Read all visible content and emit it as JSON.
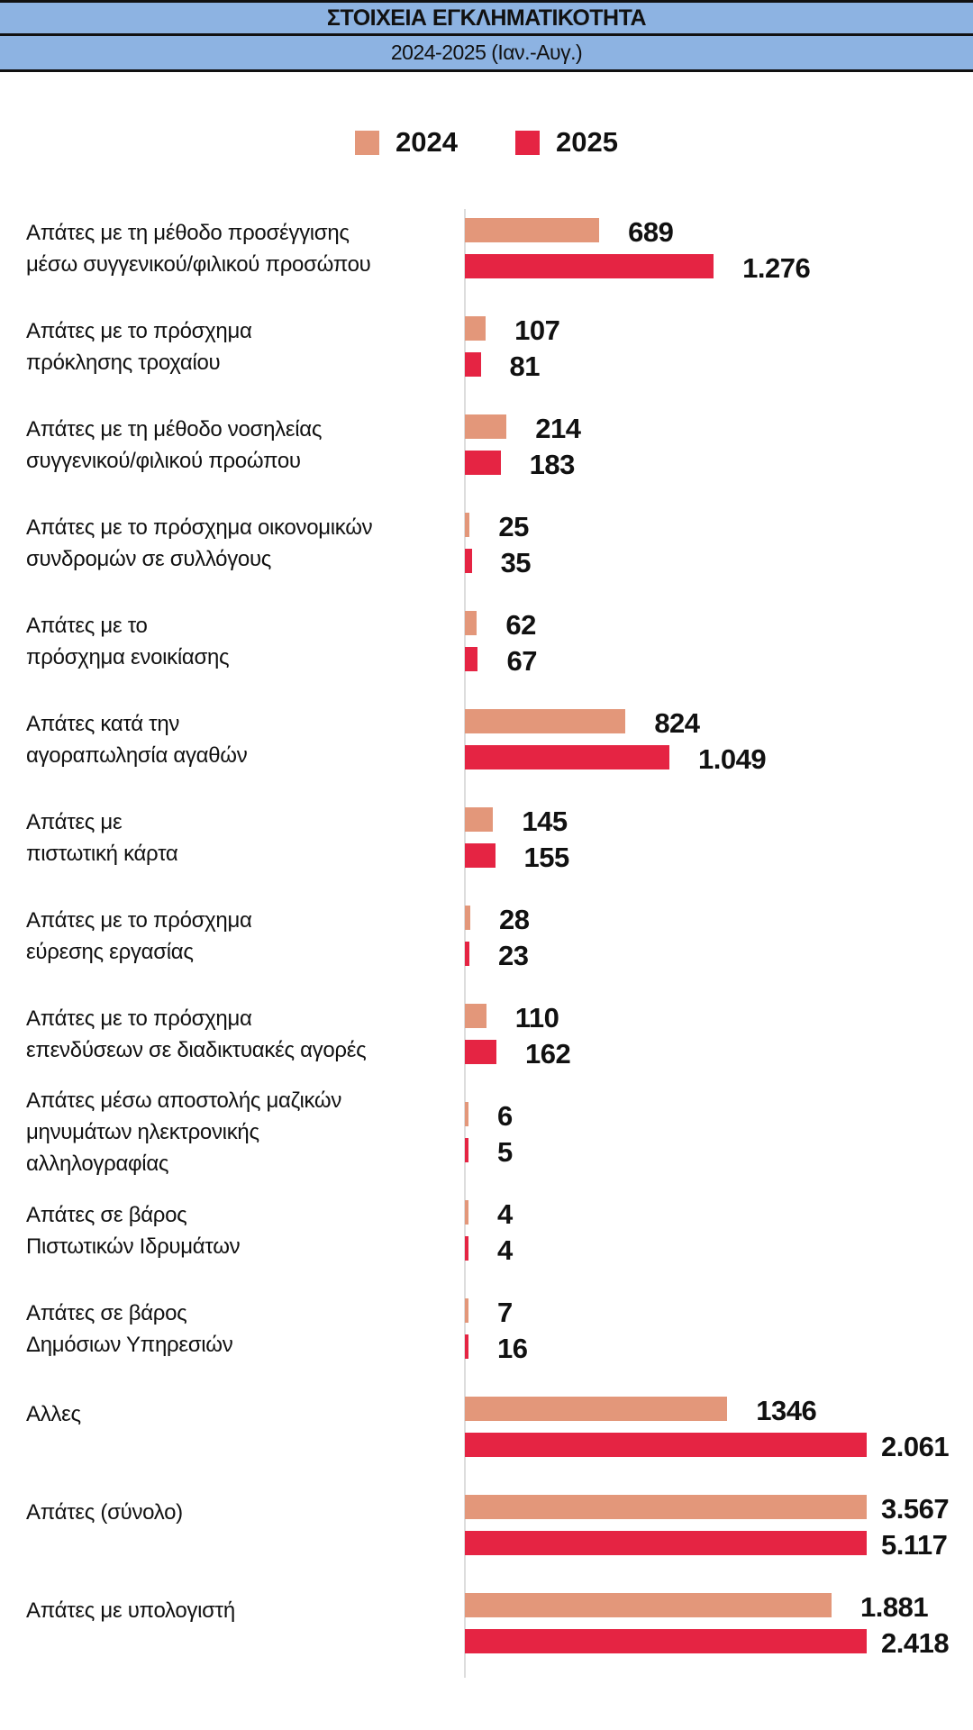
{
  "header": {
    "title": "ΣΤΟΙΧΕΙΑ ΕΓΚΛΗΜΑΤΙΚΟΤΗΤΑ",
    "subtitle": "2024-2025 (Ιαν.-Αυγ.)"
  },
  "colors": {
    "2024": "#E3977A",
    "2025": "#E52443",
    "header_band": "#8DB3E2"
  },
  "chart_data": {
    "type": "bar",
    "orientation": "horizontal",
    "title": "ΣΤΟΙΧΕΙΑ ΕΓΚΛΗΜΑΤΙΚΟΤΗΤΑ",
    "subtitle": "2024-2025 (Ιαν.-Αυγ.)",
    "legend_position": "top",
    "grid": false,
    "categories": [
      [
        "Απάτες με τη μέθοδο προσέγγισης",
        "μέσω συγγενικού/φιλικού προσώπου"
      ],
      [
        "Απάτες με το πρόσχημα",
        "πρόκλησης τροχαίου"
      ],
      [
        "Απάτες με τη μέθοδο νοσηλείας",
        "συγγενικού/φιλικού προώπου"
      ],
      [
        "Απάτες με το πρόσχημα οικονομικών",
        "συνδρομών σε συλλόγους"
      ],
      [
        "Απάτες με το",
        "πρόσχημα ενοικίασης"
      ],
      [
        "Απάτες κατά την",
        "αγοραπωλησία αγαθών"
      ],
      [
        "Απάτες με",
        "πιστωτική κάρτα"
      ],
      [
        "Απάτες με το πρόσχημα",
        "εύρεσης εργασίας"
      ],
      [
        "Απάτες με το πρόσχημα",
        "επενδύσεων σε διαδικτυακές αγορές"
      ],
      [
        "Απάτες μέσω αποστολής μαζικών",
        "μηνυμάτων ηλεκτρονικής",
        "αλληλογραφίας"
      ],
      [
        "Απάτες σε βάρος",
        "Πιστωτικών Ιδρυμάτων"
      ],
      [
        "Απάτες σε βάρος",
        "Δημόσιων Υπηρεσιών"
      ],
      [
        "Αλλες"
      ],
      [
        "Απάτες (σύνολο)"
      ],
      [
        "Απάτες με υπολογιστή"
      ]
    ],
    "series": [
      {
        "name": "2024",
        "values": [
          689,
          107,
          214,
          25,
          62,
          824,
          145,
          28,
          110,
          6,
          4,
          7,
          1346,
          3567,
          1881
        ],
        "labels": [
          "689",
          "107",
          "214",
          "25",
          "62",
          "824",
          "145",
          "28",
          "110",
          "6",
          "4",
          "7",
          "1346",
          "3.567",
          "1.881"
        ]
      },
      {
        "name": "2025",
        "values": [
          1276,
          81,
          183,
          35,
          67,
          1049,
          155,
          23,
          162,
          5,
          4,
          16,
          2061,
          5117,
          2418
        ],
        "labels": [
          "1.276",
          "81",
          "183",
          "35",
          "67",
          "1.049",
          "155",
          "23",
          "162",
          "5",
          "4",
          "16",
          "2.061",
          "5.117",
          "2.418"
        ]
      }
    ]
  }
}
